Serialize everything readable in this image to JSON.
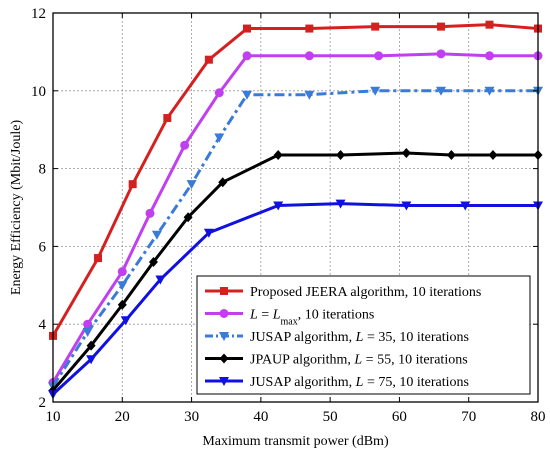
{
  "chart_data": {
    "type": "line",
    "xlabel": "Maximum transmit power (dBm)",
    "ylabel": "Energy Efficiency (Mbit/Joule)",
    "xlim": [
      10,
      80
    ],
    "ylim": [
      2,
      12
    ],
    "xticks": [
      10,
      20,
      30,
      40,
      50,
      60,
      70,
      80
    ],
    "yticks": [
      2,
      4,
      6,
      8,
      10,
      12
    ],
    "grid": true,
    "legend_position": "bottom-right",
    "series": [
      {
        "name": "Proposed JEERA algorithm, 10 iterations",
        "name_parts": [
          "Proposed JEERA algorithm, 10 iterations"
        ],
        "color": "#d62020",
        "marker": "square",
        "dash": "solid",
        "x": [
          10,
          16.5,
          21.5,
          26.5,
          32.5,
          38,
          47,
          56.5,
          66,
          73,
          80
        ],
        "y": [
          3.7,
          5.7,
          7.6,
          9.3,
          10.8,
          11.6,
          11.6,
          11.65,
          11.65,
          11.7,
          11.6
        ]
      },
      {
        "name": "L = Lmax, 10 iterations",
        "name_parts": [
          "L",
          " = ",
          "L",
          "max",
          ",  10 iterations"
        ],
        "color": "#c040f0",
        "marker": "circle",
        "dash": "solid",
        "x": [
          10,
          15,
          20,
          24,
          29,
          34,
          38,
          47,
          57,
          66,
          73,
          80
        ],
        "y": [
          2.5,
          4.0,
          5.35,
          6.85,
          8.6,
          9.95,
          10.9,
          10.9,
          10.9,
          10.95,
          10.9,
          10.9
        ]
      },
      {
        "name": "JUSAP algorithm, L = 35, 10 iterations",
        "name_parts": [
          "JUSAP algorithm, ",
          "L",
          " = 35, 10 iterations"
        ],
        "color": "#3a7ad8",
        "marker": "triangle-down",
        "dash": "dashdot",
        "x": [
          10,
          15,
          20,
          25,
          30,
          34,
          38,
          47,
          56.5,
          66,
          73,
          80
        ],
        "y": [
          2.4,
          3.8,
          5.0,
          6.3,
          7.6,
          8.8,
          9.9,
          9.9,
          10.0,
          10.0,
          10.0,
          10.0
        ]
      },
      {
        "name": "JPAUP algorithm, L = 55, 10 iterations",
        "name_parts": [
          "JPAUP algorithm, ",
          "L",
          " = 55, 10 iterations"
        ],
        "color": "#000000",
        "marker": "diamond",
        "dash": "solid",
        "x": [
          10,
          15.5,
          20,
          24.5,
          29.5,
          34.5,
          42.5,
          51.5,
          61,
          67.5,
          73.5,
          80
        ],
        "y": [
          2.3,
          3.45,
          4.5,
          5.6,
          6.75,
          7.65,
          8.35,
          8.35,
          8.4,
          8.35,
          8.35,
          8.35
        ]
      },
      {
        "name": "JUSAP algorithm, L = 75, 10 iterations",
        "name_parts": [
          "JUSAP algorithm, ",
          "L",
          " = 75, 10 iterations"
        ],
        "color": "#1010e0",
        "marker": "triangle-down",
        "dash": "solid",
        "x": [
          10,
          15.5,
          20.5,
          25.5,
          32.5,
          42.5,
          51.5,
          61,
          69.5,
          80
        ],
        "y": [
          2.2,
          3.1,
          4.1,
          5.15,
          6.35,
          7.05,
          7.1,
          7.05,
          7.05,
          7.05
        ]
      }
    ]
  }
}
